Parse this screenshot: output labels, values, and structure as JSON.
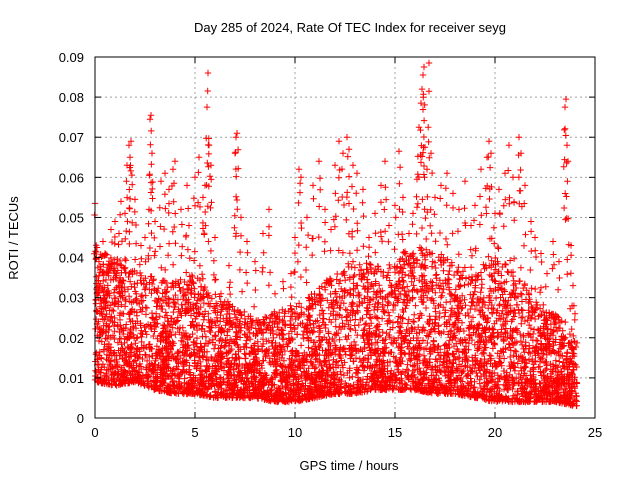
{
  "chart_data": {
    "type": "scatter",
    "title": "Day 285 of 2024, Rate Of TEC Index for receiver seyg",
    "xlabel": "GPS time / hours",
    "ylabel": "ROTI / TECUs",
    "xlim": [
      0,
      25
    ],
    "ylim": [
      0,
      0.09
    ],
    "x_ticks": [
      "0",
      "5",
      "10",
      "15",
      "20",
      "25"
    ],
    "y_ticks": [
      "0",
      "0.01",
      "0.02",
      "0.03",
      "0.04",
      "0.05",
      "0.06",
      "0.07",
      "0.08",
      "0.09"
    ],
    "grid": true,
    "marker": "+",
    "color": "#ff0000",
    "series": [
      {
        "points": [
          [
            0.0,
            0.0535
          ],
          [
            0.1,
            0.0425
          ],
          [
            0.2,
            0.039
          ],
          [
            0.3,
            0.037
          ],
          [
            0.4,
            0.044
          ],
          [
            0.5,
            0.041
          ],
          [
            0.8,
            0.047
          ],
          [
            1.0,
            0.049
          ],
          [
            1.2,
            0.046
          ],
          [
            1.3,
            0.054
          ],
          [
            1.5,
            0.051
          ],
          [
            1.6,
            0.063
          ],
          [
            1.7,
            0.068
          ],
          [
            1.75,
            0.065
          ],
          [
            1.8,
            0.069
          ],
          [
            2.0,
            0.0545
          ],
          [
            2.3,
            0.043
          ],
          [
            2.5,
            0.045
          ],
          [
            2.7,
            0.052
          ],
          [
            2.75,
            0.0745
          ],
          [
            2.8,
            0.0755
          ],
          [
            2.85,
            0.066
          ],
          [
            3.0,
            0.049
          ],
          [
            3.3,
            0.059
          ],
          [
            3.5,
            0.061
          ],
          [
            3.7,
            0.057
          ],
          [
            3.9,
            0.062
          ],
          [
            4.0,
            0.064
          ],
          [
            4.3,
            0.052
          ],
          [
            4.6,
            0.058
          ],
          [
            4.7,
            0.048
          ],
          [
            5.0,
            0.06
          ],
          [
            5.2,
            0.065
          ],
          [
            5.4,
            0.055
          ],
          [
            5.5,
            0.058
          ],
          [
            5.6,
            0.0775
          ],
          [
            5.65,
            0.086
          ],
          [
            5.7,
            0.068
          ],
          [
            5.8,
            0.063
          ],
          [
            6.0,
            0.045
          ],
          [
            6.3,
            0.031
          ],
          [
            6.7,
            0.038
          ],
          [
            7.0,
            0.066
          ],
          [
            7.05,
            0.07
          ],
          [
            7.1,
            0.071
          ],
          [
            7.3,
            0.05
          ],
          [
            7.6,
            0.044
          ],
          [
            8.0,
            0.039
          ],
          [
            8.4,
            0.046
          ],
          [
            8.7,
            0.052
          ],
          [
            9.0,
            0.031
          ],
          [
            9.4,
            0.034
          ],
          [
            9.8,
            0.036
          ],
          [
            10.0,
            0.045
          ],
          [
            10.2,
            0.062
          ],
          [
            10.3,
            0.06
          ],
          [
            10.6,
            0.05
          ],
          [
            10.9,
            0.058
          ],
          [
            11.2,
            0.064
          ],
          [
            11.5,
            0.052
          ],
          [
            11.8,
            0.047
          ],
          [
            12.0,
            0.063
          ],
          [
            12.2,
            0.069
          ],
          [
            12.4,
            0.066
          ],
          [
            12.6,
            0.07
          ],
          [
            12.7,
            0.067
          ],
          [
            12.9,
            0.063
          ],
          [
            13.1,
            0.061
          ],
          [
            13.4,
            0.057
          ],
          [
            13.7,
            0.045
          ],
          [
            14.0,
            0.051
          ],
          [
            14.3,
            0.058
          ],
          [
            14.5,
            0.064
          ],
          [
            14.7,
            0.048
          ],
          [
            15.0,
            0.053
          ],
          [
            15.2,
            0.0665
          ],
          [
            15.4,
            0.055
          ],
          [
            15.7,
            0.046
          ],
          [
            15.9,
            0.051
          ],
          [
            16.1,
            0.0595
          ],
          [
            16.2,
            0.0725
          ],
          [
            16.3,
            0.0785
          ],
          [
            16.35,
            0.082
          ],
          [
            16.4,
            0.0855
          ],
          [
            16.45,
            0.0875
          ],
          [
            16.5,
            0.0675
          ],
          [
            16.6,
            0.062
          ],
          [
            16.7,
            0.0885
          ],
          [
            16.8,
            0.066
          ],
          [
            17.0,
            0.055
          ],
          [
            17.3,
            0.058
          ],
          [
            17.6,
            0.061
          ],
          [
            17.9,
            0.056
          ],
          [
            18.2,
            0.052
          ],
          [
            18.5,
            0.059
          ],
          [
            18.8,
            0.048
          ],
          [
            19.0,
            0.053
          ],
          [
            19.3,
            0.062
          ],
          [
            19.6,
            0.065
          ],
          [
            19.7,
            0.069
          ],
          [
            19.8,
            0.066
          ],
          [
            20.0,
            0.051
          ],
          [
            20.2,
            0.057
          ],
          [
            20.5,
            0.061
          ],
          [
            20.7,
            0.068
          ],
          [
            20.9,
            0.06
          ],
          [
            21.2,
            0.07
          ],
          [
            21.3,
            0.066
          ],
          [
            21.5,
            0.058
          ],
          [
            21.8,
            0.049
          ],
          [
            22.0,
            0.045
          ],
          [
            22.3,
            0.041
          ],
          [
            22.6,
            0.036
          ],
          [
            22.9,
            0.044
          ],
          [
            23.2,
            0.039
          ],
          [
            23.5,
            0.0775
          ],
          [
            23.55,
            0.0795
          ],
          [
            23.6,
            0.068
          ],
          [
            23.65,
            0.064
          ],
          [
            23.8,
            0.043
          ],
          [
            23.9,
            0.033
          ],
          [
            24.0,
            0.026
          ]
        ]
      }
    ],
    "density_envelope": {
      "x": [
        0,
        1,
        2,
        3,
        4,
        5,
        6,
        7,
        8,
        9,
        10,
        11,
        12,
        13,
        14,
        15,
        16,
        17,
        18,
        19,
        20,
        21,
        22,
        23,
        24
      ],
      "upper": [
        0.042,
        0.04,
        0.037,
        0.035,
        0.034,
        0.036,
        0.031,
        0.028,
        0.025,
        0.026,
        0.028,
        0.032,
        0.036,
        0.04,
        0.038,
        0.039,
        0.044,
        0.041,
        0.039,
        0.037,
        0.04,
        0.037,
        0.03,
        0.026,
        0.022
      ],
      "lower": [
        0.009,
        0.008,
        0.009,
        0.007,
        0.006,
        0.006,
        0.005,
        0.005,
        0.005,
        0.004,
        0.004,
        0.005,
        0.006,
        0.006,
        0.007,
        0.007,
        0.007,
        0.006,
        0.006,
        0.005,
        0.004,
        0.004,
        0.004,
        0.004,
        0.003
      ]
    }
  }
}
